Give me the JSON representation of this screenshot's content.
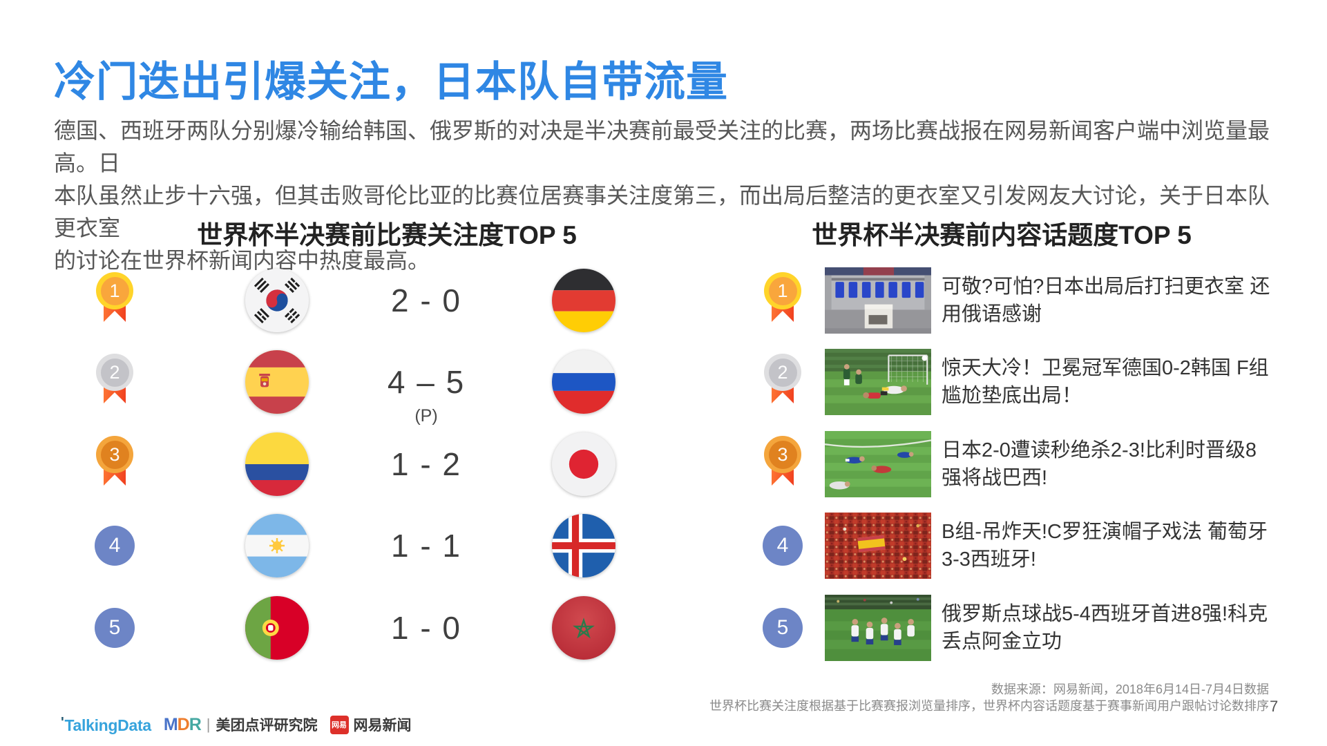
{
  "slide": {
    "title": "冷门迭出引爆关注，日本队自带流量",
    "body_lines": [
      "德国、西班牙两队分别爆冷输给韩国、俄罗斯的对决是半决赛前最受关注的比赛，两场比赛战报在网易新闻客户端中浏览量最高。日",
      "本队虽然止步十六强，但其击败哥伦比亚的比赛位居赛事关注度第三，而出局后整洁的更衣室又引发网友大讨论，关于日本队更衣室",
      "的讨论在世界杯新闻内容中热度最高。"
    ],
    "page_number": "7"
  },
  "left_panel": {
    "title": "世界杯半决赛前比赛关注度TOP 5",
    "rows": [
      {
        "rank": "1",
        "medal": "gold",
        "home_flag": "south-korea",
        "score": "2 - 0",
        "score_note": "",
        "away_flag": "germany"
      },
      {
        "rank": "2",
        "medal": "silver",
        "home_flag": "spain",
        "score": "4 – 5",
        "score_note": "(P)",
        "away_flag": "russia"
      },
      {
        "rank": "3",
        "medal": "bronze",
        "home_flag": "colombia",
        "score": "1 - 2",
        "score_note": "",
        "away_flag": "japan"
      },
      {
        "rank": "4",
        "medal": "blue",
        "home_flag": "argentina",
        "score": "1 - 1",
        "score_note": "",
        "away_flag": "iceland"
      },
      {
        "rank": "5",
        "medal": "blue",
        "home_flag": "portugal",
        "score": "1 - 0",
        "score_note": "",
        "away_flag": "morocco"
      }
    ]
  },
  "right_panel": {
    "title": "世界杯半决赛前内容话题度TOP 5",
    "rows": [
      {
        "rank": "1",
        "medal": "gold",
        "thumb": "locker-room",
        "headline": "可敬?可怕?日本出局后打扫更衣室 还用俄语感谢"
      },
      {
        "rank": "2",
        "medal": "silver",
        "thumb": "germany-korea-goal",
        "headline": "惊天大冷！卫冕冠军德国0-2韩国 F组尴尬垫底出局！"
      },
      {
        "rank": "3",
        "medal": "bronze",
        "thumb": "japan-belgium-match",
        "headline": "日本2-0遭读秒绝杀2-3!比利时晋级8强将战巴西!"
      },
      {
        "rank": "4",
        "medal": "blue",
        "thumb": "portugal-spain-crowd",
        "headline": "B组-吊炸天!C罗狂演帽子戏法 葡萄牙3-3西班牙!"
      },
      {
        "rank": "5",
        "medal": "blue",
        "thumb": "russia-celebration",
        "headline": "俄罗斯点球战5-4西班牙首进8强!科克丢点阿金立功"
      }
    ]
  },
  "footer": {
    "source_line1": "数据来源：网易新闻，2018年6月14日-7月4日数据",
    "source_line2": "世界杯比赛关注度根据基于比赛赛报浏览量排序，世界杯内容话题度基于赛事新闻用户跟帖讨论数排序",
    "logos": {
      "talkingdata": "TalkingData",
      "mdr": "MDR",
      "mdr_divider": "|",
      "mdr_label": "美团点评研究院",
      "netease_icon_text": "网易",
      "netease_label": "网易新闻"
    }
  },
  "colors": {
    "title_accent": "#2F87E4",
    "body_text": "#575757",
    "medal_gold": "#FFD42A",
    "medal_silver": "#DEDEE0",
    "medal_bronze": "#F4A53C",
    "ribbon_orange": "#F03E1E",
    "rank_blue": "#6D85C6",
    "talkingdata_blue": "#36A3DC",
    "netease_red": "#DD302A"
  }
}
